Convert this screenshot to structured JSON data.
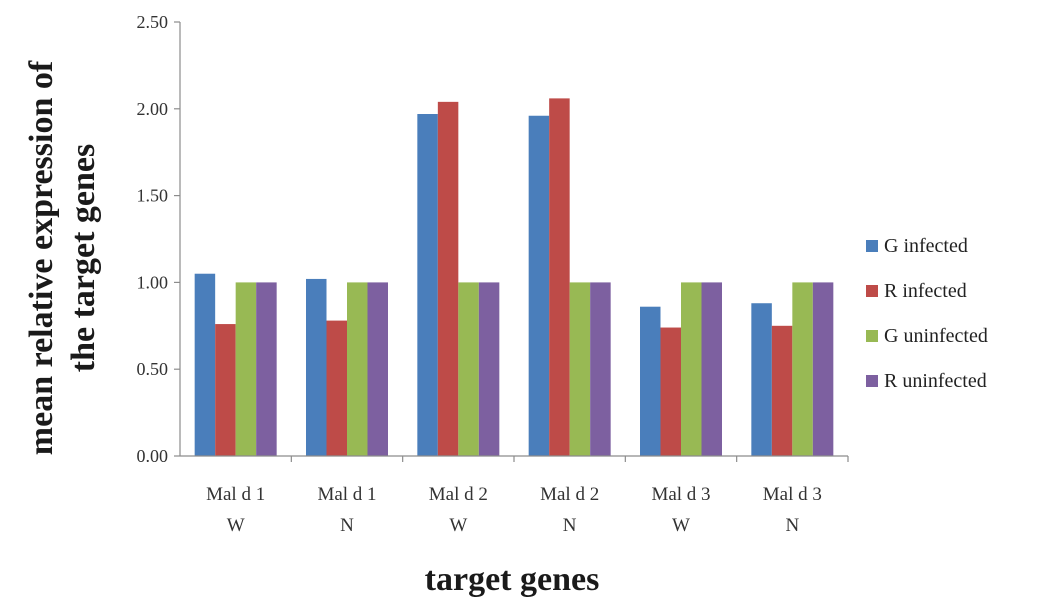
{
  "chart_data": {
    "type": "bar",
    "categories": [
      [
        "Mal d 1",
        "W"
      ],
      [
        "Mal d 1",
        "N"
      ],
      [
        "Mal d 2",
        "W"
      ],
      [
        "Mal d 2",
        "N"
      ],
      [
        "Mal d 3",
        "W"
      ],
      [
        "Mal d 3",
        "N"
      ]
    ],
    "series": [
      {
        "name": "G  infected",
        "color": "#4a7ebb",
        "values": [
          1.05,
          1.02,
          1.97,
          1.96,
          0.86,
          0.88
        ]
      },
      {
        "name": "R  infected",
        "color": "#be4b48",
        "values": [
          0.76,
          0.78,
          2.04,
          2.06,
          0.74,
          0.75
        ]
      },
      {
        "name": "G uninfected",
        "color": "#98b954",
        "values": [
          1.0,
          1.0,
          1.0,
          1.0,
          1.0,
          1.0
        ]
      },
      {
        "name": "R uninfected",
        "color": "#7d60a0",
        "values": [
          1.0,
          1.0,
          1.0,
          1.0,
          1.0,
          1.0
        ]
      }
    ],
    "yticks": [
      "0.00",
      "0.50",
      "1.00",
      "1.50",
      "2.00",
      "2.50"
    ],
    "ylim": [
      0,
      2.5
    ],
    "ylabel_lines": [
      "mean relative expression of",
      "the target genes"
    ],
    "xlabel": "target genes",
    "grid": false,
    "legend_position": "right"
  }
}
